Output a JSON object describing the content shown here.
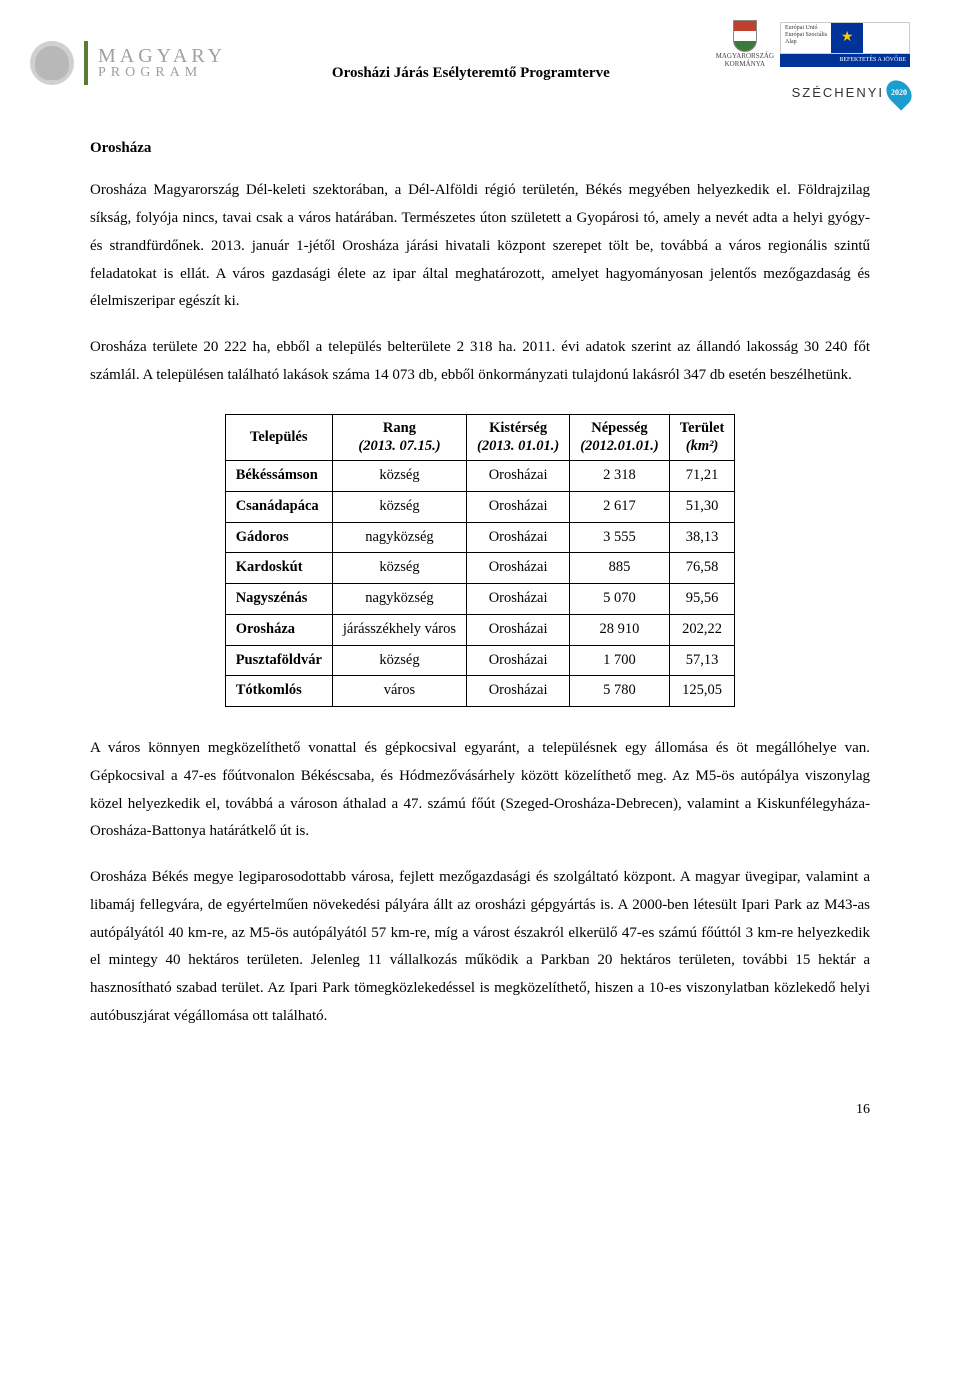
{
  "header": {
    "program_line1": "MAGYARY",
    "program_line2": "PROGRAM",
    "center_title": "Orosházi Járás Esélyteremtő Programterve",
    "gov_line1": "MAGYARORSZÁG",
    "gov_line2": "KORMÁNYA",
    "eu_text_line1": "Európai Unió",
    "eu_text_line2": "Európai Szociális",
    "eu_text_line3": "Alap",
    "eu_strip": "BEFEKTETÉS A JÖVŐBE",
    "szechenyi_label": "SZÉCHENYI",
    "szechenyi_year": "2020"
  },
  "section_title": "Orosháza",
  "paragraphs": {
    "p1": "Orosháza Magyarország Dél-keleti szektorában, a Dél-Alföldi régió területén, Békés megyében helyezkedik el. Földrajzilag síkság, folyója nincs, tavai csak a város határában. Természetes úton született a Gyopárosi tó, amely a nevét adta a helyi gyógy- és strandfürdőnek. 2013. január 1-jétől Orosháza járási hivatali központ szerepet tölt be, továbbá a város regionális szintű feladatokat is ellát. A város gazdasági élete az ipar által meghatározott, amelyet hagyományosan jelentős mezőgazdaság és élelmiszeripar egészít ki.",
    "p2": "Orosháza területe 20 222 ha, ebből a település belterülete 2 318 ha. 2011. évi adatok szerint az állandó lakosság 30 240 főt számlál. A településen található lakások száma 14 073 db, ebből önkormányzati tulajdonú lakásról 347 db esetén beszélhetünk.",
    "p3": "A város könnyen megközelíthető vonattal és gépkocsival egyaránt, a településnek egy állomása és öt megállóhelye van. Gépkocsival a 47-es főútvonalon Békéscsaba, és Hódmezővásárhely között közelíthető meg. Az M5-ös autópálya viszonylag közel helyezkedik el, továbbá a városon áthalad a 47. számú főút (Szeged-Orosháza-Debrecen), valamint a Kiskunfélegyháza-Orosháza-Battonya határátkelő út is.",
    "p4": "Orosháza Békés megye legiparosodottabb városa, fejlett mezőgazdasági és szolgáltató központ. A magyar üvegipar, valamint a libamáj fellegvára, de egyértelműen növekedési pályára állt az orosházi gépgyártás is. A 2000-ben létesült Ipari Park az M43-as autópályától 40 km-re, az M5-ös autópályától 57 km-re, míg a várost északról elkerülő 47-es számú főúttól 3 km-re helyezkedik el mintegy 40 hektáros területen. Jelenleg 11 vállalkozás működik a Parkban 20 hektáros területen, további 15 hektár a hasznosítható szabad terület. Az Ipari Park tömegközlekedéssel is megközelíthető, hiszen a 10-es viszonylatban közlekedő helyi autóbuszjárat végállomása ott található."
  },
  "table": {
    "headers": {
      "col1": "Település",
      "col2_main": "Rang",
      "col2_sub": "(2013. 07.15.)",
      "col3_main": "Kistérség",
      "col3_sub": "(2013. 01.01.)",
      "col4_main": "Népesség",
      "col4_sub": "(2012.01.01.)",
      "col5_main": "Terület",
      "col5_sub": "(km²)"
    },
    "rows": [
      {
        "name": "Békéssámson",
        "rank": "község",
        "region": "Orosházai",
        "pop": "2 318",
        "area": "71,21"
      },
      {
        "name": "Csanádapáca",
        "rank": "község",
        "region": "Orosházai",
        "pop": "2 617",
        "area": "51,30"
      },
      {
        "name": "Gádoros",
        "rank": "nagyközség",
        "region": "Orosházai",
        "pop": "3 555",
        "area": "38,13"
      },
      {
        "name": "Kardoskút",
        "rank": "község",
        "region": "Orosházai",
        "pop": "885",
        "area": "76,58"
      },
      {
        "name": "Nagyszénás",
        "rank": "nagyközség",
        "region": "Orosházai",
        "pop": "5 070",
        "area": "95,56"
      },
      {
        "name": "Orosháza",
        "rank": "járásszékhely város",
        "region": "Orosházai",
        "pop": "28 910",
        "area": "202,22"
      },
      {
        "name": "Pusztaföldvár",
        "rank": "község",
        "region": "Orosházai",
        "pop": "1 700",
        "area": "57,13"
      },
      {
        "name": "Tótkomlós",
        "rank": "város",
        "region": "Orosházai",
        "pop": "5 780",
        "area": "125,05"
      }
    ]
  },
  "page_number": "16"
}
